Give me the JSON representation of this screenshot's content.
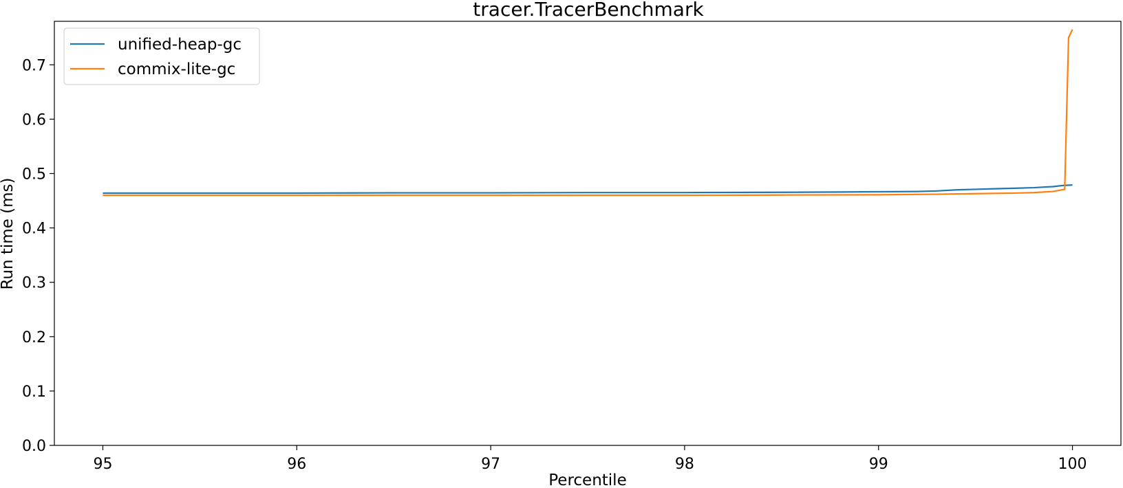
{
  "chart_data": {
    "type": "line",
    "title": "tracer.TracerBenchmark",
    "xlabel": "Percentile",
    "ylabel": "Run time (ms)",
    "xlim": [
      94.75,
      100.25
    ],
    "ylim": [
      0.0,
      0.78
    ],
    "xticks": [
      "95",
      "96",
      "97",
      "98",
      "99",
      "100"
    ],
    "xtick_values": [
      95,
      96,
      97,
      98,
      99,
      100
    ],
    "yticks": [
      "0.0",
      "0.1",
      "0.2",
      "0.3",
      "0.4",
      "0.5",
      "0.6",
      "0.7"
    ],
    "ytick_values": [
      0.0,
      0.1,
      0.2,
      0.3,
      0.4,
      0.5,
      0.6,
      0.7
    ],
    "grid": false,
    "legend_position": "top-left",
    "series": [
      {
        "name": "unified-heap-gc",
        "color": "#1f77b4",
        "x": [
          95.0,
          95.5,
          96.0,
          96.5,
          97.0,
          97.5,
          98.0,
          98.5,
          98.8,
          99.0,
          99.2,
          99.3,
          99.4,
          99.5,
          99.6,
          99.7,
          99.8,
          99.9,
          99.95,
          100.0
        ],
        "y": [
          0.464,
          0.464,
          0.464,
          0.4645,
          0.4645,
          0.465,
          0.465,
          0.4655,
          0.466,
          0.4665,
          0.467,
          0.468,
          0.47,
          0.471,
          0.472,
          0.473,
          0.474,
          0.476,
          0.478,
          0.479
        ]
      },
      {
        "name": "commix-lite-gc",
        "color": "#ff7f0e",
        "x": [
          95.0,
          95.5,
          96.0,
          96.5,
          97.0,
          97.5,
          98.0,
          98.5,
          99.0,
          99.3,
          99.5,
          99.7,
          99.8,
          99.9,
          99.96,
          99.98,
          100.0
        ],
        "y": [
          0.46,
          0.46,
          0.46,
          0.46,
          0.46,
          0.46,
          0.46,
          0.4605,
          0.461,
          0.462,
          0.463,
          0.464,
          0.465,
          0.467,
          0.471,
          0.75,
          0.765
        ]
      }
    ]
  }
}
